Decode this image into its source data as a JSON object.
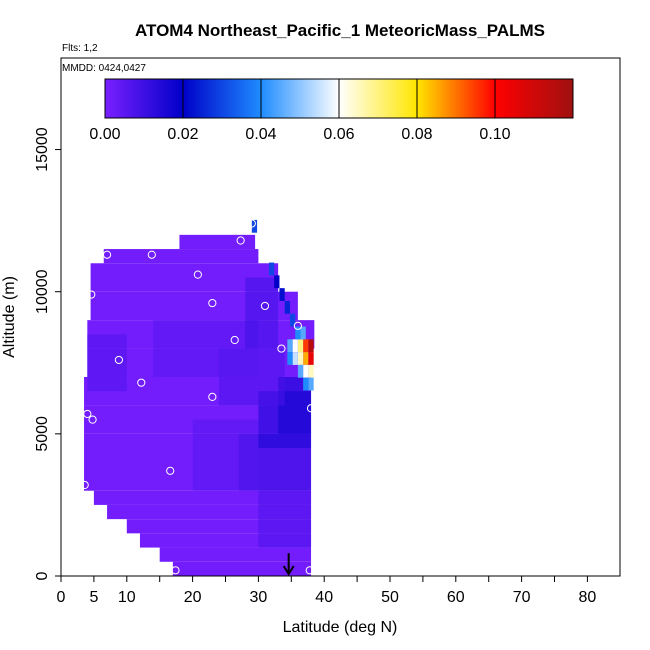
{
  "chart_data": {
    "type": "heatmap",
    "title": "ATOM4 Northeast_Pacific_1 MeteoricMass_PALMS",
    "flights_note": "Flts: 1,2",
    "date_note": "MMDD: 0424,0427",
    "xlabel": "Latitude (deg N)",
    "ylabel": "Altitude (m)",
    "xlim": [
      0,
      85
    ],
    "ylim": [
      0,
      17500
    ],
    "x_ticks": [
      0,
      5,
      10,
      20,
      30,
      40,
      50,
      60,
      70,
      80
    ],
    "y_ticks": [
      0,
      5000,
      10000,
      15000
    ],
    "grid": false,
    "colorbar": {
      "placement": "top",
      "min": 0.0,
      "max": 0.12,
      "tick_values": [
        0.0,
        0.02,
        0.04,
        0.06,
        0.08,
        0.1
      ],
      "tick_labels": [
        "0.00",
        "0.02",
        "0.04",
        "0.06",
        "0.08",
        "0.10"
      ],
      "colors": [
        "#7a1fff",
        "#0000c8",
        "#1e8cff",
        "#ffffff",
        "#ffe600",
        "#ff0000",
        "#a01010"
      ]
    },
    "arrow_marker": {
      "latitude": 34.6,
      "altitude": 500
    },
    "region_profile": [
      {
        "altitude": 0,
        "lat_min": 17,
        "lat_max": 38
      },
      {
        "altitude": 500,
        "lat_min": 15,
        "lat_max": 38
      },
      {
        "altitude": 1000,
        "lat_min": 12,
        "lat_max": 38
      },
      {
        "altitude": 1500,
        "lat_min": 10,
        "lat_max": 38
      },
      {
        "altitude": 2000,
        "lat_min": 7,
        "lat_max": 38
      },
      {
        "altitude": 2500,
        "lat_min": 5,
        "lat_max": 38
      },
      {
        "altitude": 3000,
        "lat_min": 3.5,
        "lat_max": 38
      },
      {
        "altitude": 5000,
        "lat_min": 3.5,
        "lat_max": 38
      },
      {
        "altitude": 6000,
        "lat_min": 3.5,
        "lat_max": 38
      },
      {
        "altitude": 7000,
        "lat_min": 4,
        "lat_max": 38
      },
      {
        "altitude": 8000,
        "lat_min": 4,
        "lat_max": 38.5
      },
      {
        "altitude": 9000,
        "lat_min": 4.5,
        "lat_max": 36
      },
      {
        "altitude": 10000,
        "lat_min": 4.5,
        "lat_max": 33
      },
      {
        "altitude": 11000,
        "lat_min": 6.5,
        "lat_max": 30
      },
      {
        "altitude": 11500,
        "lat_min": 18,
        "lat_max": 29.5
      },
      {
        "altitude": 12000,
        "lat_min": 18,
        "lat_max": 29.5
      }
    ],
    "cells": [
      {
        "lat": 37.2,
        "alt": 8100,
        "value": 0.095
      },
      {
        "lat": 38.0,
        "alt": 8100,
        "value": 0.115
      },
      {
        "lat": 37.2,
        "alt": 7650,
        "value": 0.085
      },
      {
        "lat": 38.0,
        "alt": 7650,
        "value": 0.105
      },
      {
        "lat": 36.4,
        "alt": 8100,
        "value": 0.07
      },
      {
        "lat": 36.4,
        "alt": 7650,
        "value": 0.065
      },
      {
        "lat": 35.6,
        "alt": 8100,
        "value": 0.06
      },
      {
        "lat": 35.6,
        "alt": 7650,
        "value": 0.055
      },
      {
        "lat": 34.8,
        "alt": 8100,
        "value": 0.045
      },
      {
        "lat": 34.8,
        "alt": 7650,
        "value": 0.04
      },
      {
        "lat": 37.2,
        "alt": 7200,
        "value": 0.06
      },
      {
        "lat": 38.0,
        "alt": 7200,
        "value": 0.065
      },
      {
        "lat": 36.4,
        "alt": 7200,
        "value": 0.045
      },
      {
        "lat": 37.2,
        "alt": 6750,
        "value": 0.04
      },
      {
        "lat": 38.0,
        "alt": 6750,
        "value": 0.045
      },
      {
        "lat": 36.0,
        "alt": 8550,
        "value": 0.04
      },
      {
        "lat": 36.8,
        "alt": 8550,
        "value": 0.045
      },
      {
        "lat": 35.2,
        "alt": 9000,
        "value": 0.03
      },
      {
        "lat": 34.4,
        "alt": 9450,
        "value": 0.025
      },
      {
        "lat": 33.6,
        "alt": 9900,
        "value": 0.022
      },
      {
        "lat": 32.8,
        "alt": 10350,
        "value": 0.02
      },
      {
        "lat": 32.0,
        "alt": 10800,
        "value": 0.03
      },
      {
        "lat": 29.4,
        "alt": 12300,
        "value": 0.03
      }
    ],
    "flight_points": [
      {
        "lat": 29.0,
        "alt": 12400
      },
      {
        "lat": 27.3,
        "alt": 11800
      },
      {
        "lat": 7.0,
        "alt": 11300
      },
      {
        "lat": 13.8,
        "alt": 11300
      },
      {
        "lat": 20.8,
        "alt": 10600
      },
      {
        "lat": 4.6,
        "alt": 9900
      },
      {
        "lat": 23.0,
        "alt": 9600
      },
      {
        "lat": 31.0,
        "alt": 9500
      },
      {
        "lat": 36.0,
        "alt": 8800
      },
      {
        "lat": 26.4,
        "alt": 8300
      },
      {
        "lat": 33.5,
        "alt": 8000
      },
      {
        "lat": 8.8,
        "alt": 7600
      },
      {
        "lat": 12.2,
        "alt": 6800
      },
      {
        "lat": 23.0,
        "alt": 6300
      },
      {
        "lat": 38.0,
        "alt": 5900
      },
      {
        "lat": 4.0,
        "alt": 5700
      },
      {
        "lat": 4.8,
        "alt": 5500
      },
      {
        "lat": 16.6,
        "alt": 3700
      },
      {
        "lat": 3.6,
        "alt": 3200
      },
      {
        "lat": 17.4,
        "alt": 200
      },
      {
        "lat": 37.8,
        "alt": 200
      }
    ]
  }
}
